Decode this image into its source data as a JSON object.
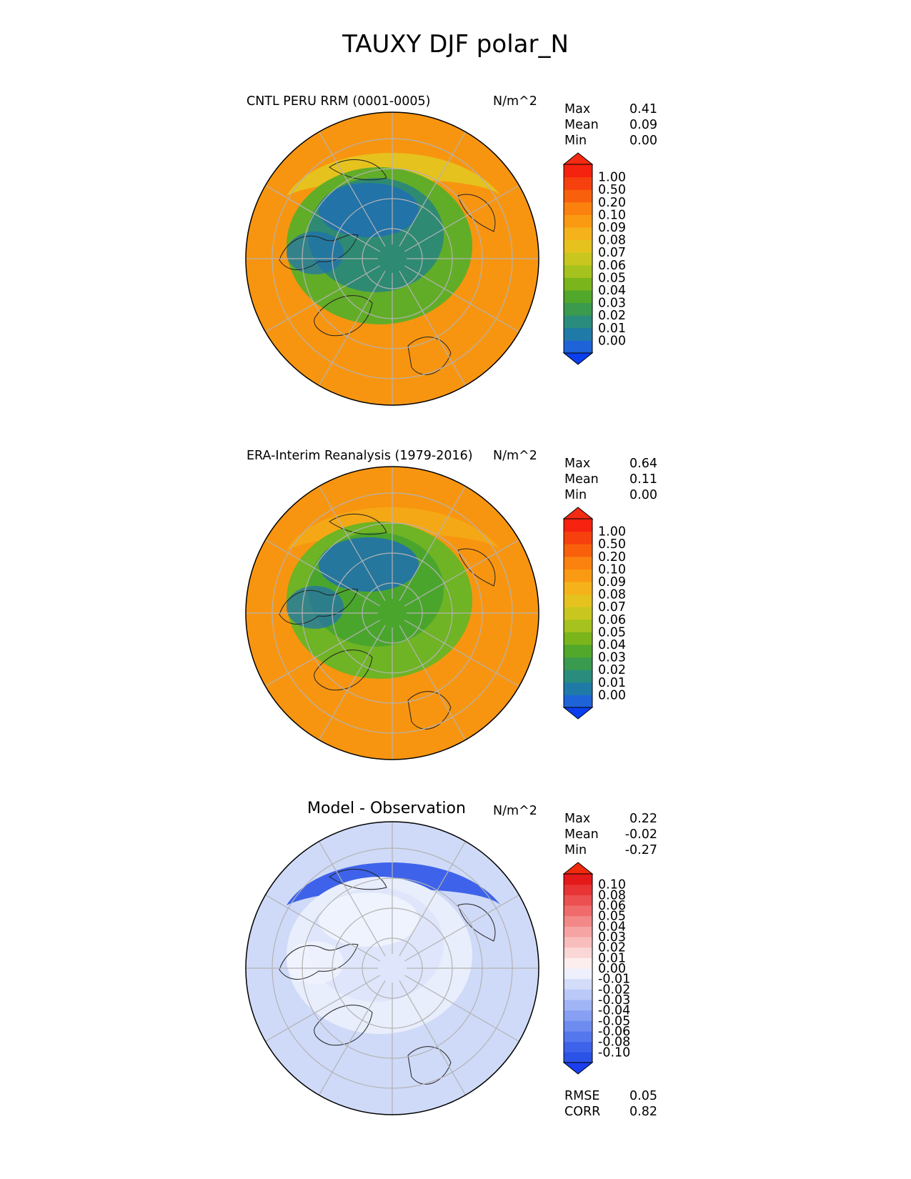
{
  "title": "TAUXY DJF polar_N",
  "panels": [
    {
      "name": "test",
      "title": "CNTL PERU RRM (0001-0005)",
      "units": "N/m^2",
      "stats": {
        "max_label": "Max",
        "max": "0.41",
        "mean_label": "Mean",
        "mean": "0.09",
        "min_label": "Min",
        "min": "0.00"
      },
      "colorbar": {
        "levels": [
          "0.00",
          "0.01",
          "0.02",
          "0.03",
          "0.04",
          "0.05",
          "0.06",
          "0.07",
          "0.08",
          "0.09",
          "0.10",
          "0.20",
          "0.50",
          "1.00"
        ],
        "colors": [
          "#1f63d8",
          "#1f7aa8",
          "#2a8c7c",
          "#3a9a4e",
          "#52a82a",
          "#7ab51c",
          "#a6c21e",
          "#c9c71f",
          "#e5c21e",
          "#f5b21a",
          "#fa9a12",
          "#fb820f",
          "#f9600c",
          "#f6400e",
          "#f5220f"
        ],
        "under": "#0a3ff0",
        "over": "#f42a12"
      },
      "map_colors": {
        "outer": "#f89510",
        "band": "#e6c21e",
        "mid": "#62ad28",
        "inner": "#2e8a72",
        "core": "#1f6fb2"
      }
    },
    {
      "name": "reference",
      "title": "ERA-Interim Reanalysis (1979-2016)",
      "units": "N/m^2",
      "stats": {
        "max_label": "Max",
        "max": "0.64",
        "mean_label": "Mean",
        "mean": "0.11",
        "min_label": "Min",
        "min": "0.00"
      },
      "colorbar": {
        "levels": [
          "0.00",
          "0.01",
          "0.02",
          "0.03",
          "0.04",
          "0.05",
          "0.06",
          "0.07",
          "0.08",
          "0.09",
          "0.10",
          "0.20",
          "0.50",
          "1.00"
        ],
        "colors": [
          "#1f63d8",
          "#1f7aa8",
          "#2a8c7c",
          "#3a9a4e",
          "#52a82a",
          "#7ab51c",
          "#a6c21e",
          "#c9c71f",
          "#e5c21e",
          "#f5b21a",
          "#fa9a12",
          "#fb820f",
          "#f9600c",
          "#f6400e",
          "#f5220f"
        ],
        "under": "#0a3ff0",
        "over": "#f42a12"
      },
      "map_colors": {
        "outer": "#f89510",
        "band": "#f5a815",
        "mid": "#6eb424",
        "inner": "#4aa52d",
        "core": "#1f6fb2"
      }
    },
    {
      "name": "difference",
      "title": "Model - Observation",
      "units": "N/m^2",
      "stats": {
        "max_label": "Max",
        "max": "0.22",
        "mean_label": "Mean",
        "mean": "-0.02",
        "min_label": "Min",
        "min": "-0.27"
      },
      "colorbar": {
        "levels": [
          "-0.10",
          "-0.08",
          "-0.06",
          "-0.05",
          "-0.04",
          "-0.03",
          "-0.02",
          "-0.01",
          "0.00",
          "0.01",
          "0.02",
          "0.03",
          "0.04",
          "0.05",
          "0.06",
          "0.08",
          "0.10"
        ],
        "colors": [
          "#2a52e6",
          "#3e63ea",
          "#5577ee",
          "#6e8cf0",
          "#87a0f3",
          "#a0b5f5",
          "#bac9f8",
          "#d3ddfa",
          "#eef1fd",
          "#fdeeee",
          "#fbd6d6",
          "#f8bdbd",
          "#f5a3a3",
          "#f38888",
          "#f06c6c",
          "#ec5050",
          "#e83434",
          "#e41a1a"
        ],
        "under": "#1a3ef0",
        "over": "#f02a0a"
      },
      "map_colors": {
        "outer": "#cfdaf8",
        "band": "#3e63ea",
        "mid": "#e9eefc",
        "inner": "#dfe6fb",
        "core": "#f2f4fd"
      }
    }
  ],
  "bottom_stats": {
    "rmse_label": "RMSE",
    "rmse": "0.05",
    "corr_label": "CORR",
    "corr": "0.82"
  },
  "chart_data": [
    {
      "type": "heatmap",
      "projection": "north polar stereographic",
      "title": "CNTL PERU RRM (0001-0005)",
      "units": "N/m^2",
      "max": 0.41,
      "mean": 0.09,
      "min": 0.0,
      "contour_levels": [
        0.0,
        0.01,
        0.02,
        0.03,
        0.04,
        0.05,
        0.06,
        0.07,
        0.08,
        0.09,
        0.1,
        0.2,
        0.5,
        1.0
      ]
    },
    {
      "type": "heatmap",
      "projection": "north polar stereographic",
      "title": "ERA-Interim Reanalysis (1979-2016)",
      "units": "N/m^2",
      "max": 0.64,
      "mean": 0.11,
      "min": 0.0,
      "contour_levels": [
        0.0,
        0.01,
        0.02,
        0.03,
        0.04,
        0.05,
        0.06,
        0.07,
        0.08,
        0.09,
        0.1,
        0.2,
        0.5,
        1.0
      ]
    },
    {
      "type": "heatmap",
      "projection": "north polar stereographic",
      "title": "Model - Observation",
      "units": "N/m^2",
      "max": 0.22,
      "mean": -0.02,
      "min": -0.27,
      "rmse": 0.05,
      "corr": 0.82,
      "contour_levels": [
        -0.1,
        -0.08,
        -0.06,
        -0.05,
        -0.04,
        -0.03,
        -0.02,
        -0.01,
        0.0,
        0.01,
        0.02,
        0.03,
        0.04,
        0.05,
        0.06,
        0.08,
        0.1
      ]
    }
  ]
}
